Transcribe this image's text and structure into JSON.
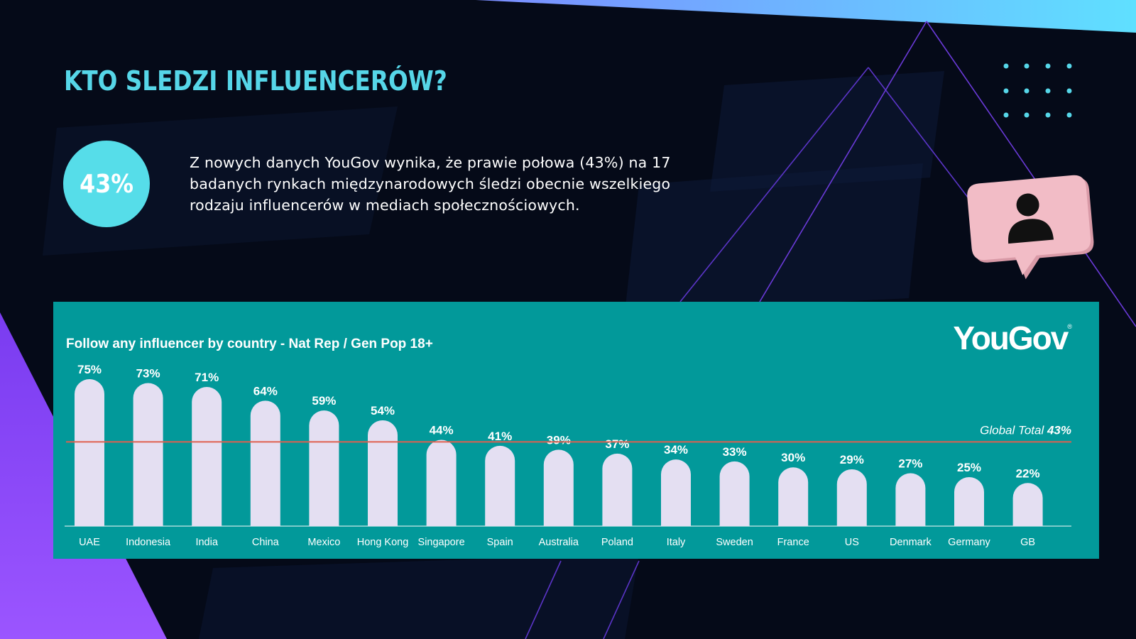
{
  "page": {
    "title": "KTO SLEDZI INFLUENCERÓW?",
    "stat_value": "43%",
    "intro_text": "Z nowych danych YouGov wynika, że prawie połowa (43%) na 17 badanych rynkach międzynarodowych śledzi obecnie wszelkiego rodzaju influencerów w mediach społecznościowych.",
    "logo_text": "YouGov",
    "logo_mark": "®"
  },
  "colors": {
    "background": "#050a18",
    "accent_cyan": "#56d6e8",
    "chart_panel": "#02999a",
    "bar": "#e4dff2",
    "reference_line": "#e0604f",
    "badge_pink": "#f2bcc6",
    "purple_accent": "#8a45f5"
  },
  "icons": {
    "badge": "user-profile-icon",
    "decor": "dot-grid"
  },
  "chart_data": {
    "type": "bar",
    "title": "Follow any influencer by country - Nat Rep / Gen Pop 18+",
    "xlabel": "",
    "ylabel": "",
    "ylim": [
      0,
      80
    ],
    "categories": [
      "UAE",
      "Indonesia",
      "India",
      "China",
      "Mexico",
      "Hong Kong",
      "Singapore",
      "Spain",
      "Australia",
      "Poland",
      "Italy",
      "Sweden",
      "France",
      "US",
      "Denmark",
      "Germany",
      "GB"
    ],
    "values": [
      75,
      73,
      71,
      64,
      59,
      54,
      44,
      41,
      39,
      37,
      34,
      33,
      30,
      29,
      27,
      25,
      22
    ],
    "value_labels": [
      "75%",
      "73%",
      "71%",
      "64%",
      "59%",
      "54%",
      "44%",
      "41%",
      "39%",
      "37%",
      "34%",
      "33%",
      "30%",
      "29%",
      "27%",
      "25%",
      "22%"
    ],
    "reference_line": {
      "label": "Global Total",
      "value_label": "43%",
      "value": 43
    },
    "grid": false,
    "legend": "none"
  }
}
